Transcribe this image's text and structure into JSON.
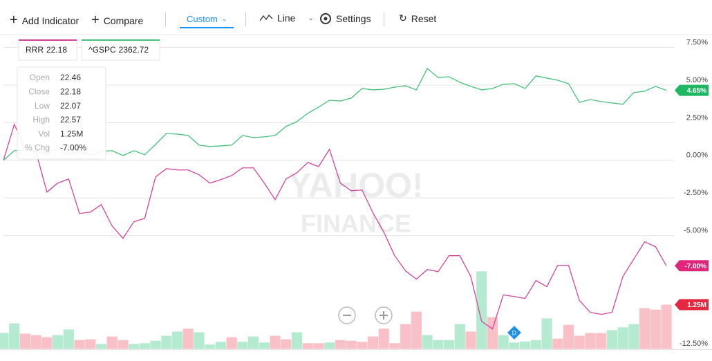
{
  "toolbar": {
    "add_indicator": "Add Indicator",
    "compare": "Compare",
    "range": "Custom",
    "chart_type": "Line",
    "settings": "Settings",
    "reset": "Reset"
  },
  "watermark": [
    "YAHOO!",
    "FINANCE"
  ],
  "tooltip": {
    "rows": [
      [
        "Open",
        "22.46"
      ],
      [
        "Close",
        "22.18"
      ],
      [
        "Low",
        "22.07"
      ],
      [
        "High",
        "22.57"
      ],
      [
        "Vol",
        "1.25M"
      ],
      [
        "% Chg",
        "-7.00%"
      ]
    ]
  },
  "chart_data": {
    "type": "line",
    "ylim": [
      -12.52,
      8.35
    ],
    "yticks": [
      {
        "value": 7.5,
        "label": "7.50%"
      },
      {
        "value": 5,
        "label": "5.00%"
      },
      {
        "value": 2.5,
        "label": "2.50%"
      },
      {
        "value": 0,
        "label": "0.00%"
      },
      {
        "value": -2.5,
        "label": "-2.50%"
      },
      {
        "value": -5,
        "label": "-5.00%"
      },
      {
        "value": -12.5,
        "label": "-12.50%"
      }
    ],
    "grid": true,
    "series": [
      {
        "name": "RRR",
        "legend_value": 22.18,
        "color": "#d2459d",
        "badge_color": "#e0267a",
        "values": [
          0,
          2.39,
          0.78,
          0.55,
          -2.11,
          -1.51,
          -1.24,
          -3.53,
          -3.44,
          -2.94,
          -4.36,
          -5.18,
          -4.08,
          -3.85,
          -1.1,
          -0.55,
          -0.64,
          -0.64,
          -0.96,
          -1.51,
          -1.28,
          -1.01,
          -0.5,
          -0.5,
          -1.51,
          -2.61,
          -1.24,
          -0.83,
          -0.14,
          -0.41,
          0.73,
          -1.51,
          -2.02,
          -1.97,
          -3.49,
          -4.77,
          -6.33,
          -7.34,
          -7.89,
          -7.25,
          -7.39,
          -6.33,
          -6.33,
          -7.71,
          -10.69,
          -11.19,
          -8.94,
          -9.04,
          -9.17,
          -7.98,
          -8.39,
          -6.97,
          -6.97,
          -9.31,
          -10.09,
          -10.23,
          -10.09,
          -7.71,
          -6.56,
          -5.41,
          -5.73,
          -7.0
        ],
        "value_labels": [
          null,
          null,
          null,
          null,
          null,
          null,
          null,
          null,
          null,
          null,
          null,
          null,
          null,
          null,
          null,
          null,
          null,
          null,
          null,
          null,
          null,
          null,
          null,
          null,
          null,
          null,
          null,
          null,
          null,
          null,
          null,
          null,
          null,
          null,
          null,
          null,
          null,
          null,
          null,
          null,
          null,
          null,
          null,
          null,
          null,
          null,
          null,
          null,
          null,
          null,
          null,
          null,
          null,
          null,
          null,
          null,
          null,
          null,
          null,
          null,
          null,
          "-7.00%"
        ]
      },
      {
        "name": "^GSPC",
        "legend_value": 2362.72,
        "color": "#45c17a",
        "badge_color": "#1fb862",
        "values": [
          0,
          0.64,
          0.69,
          0.64,
          0.46,
          0.78,
          0.41,
          0.64,
          0.32,
          0.6,
          0.64,
          0.32,
          0.64,
          0.37,
          1.06,
          1.79,
          1.74,
          1.65,
          1.01,
          0.92,
          0.96,
          1.01,
          1.65,
          1.51,
          1.56,
          1.65,
          2.25,
          2.57,
          3.12,
          3.53,
          3.99,
          3.94,
          4.13,
          4.77,
          4.68,
          4.72,
          4.86,
          4.95,
          4.68,
          6.1,
          5.5,
          5.55,
          5.18,
          4.91,
          4.68,
          4.77,
          5.05,
          5.09,
          4.77,
          5.6,
          5.46,
          5.32,
          5.09,
          3.85,
          4.04,
          3.9,
          3.81,
          3.72,
          4.5,
          4.59,
          4.91,
          4.65
        ],
        "value_labels": [
          null,
          null,
          null,
          null,
          null,
          null,
          null,
          null,
          null,
          null,
          null,
          null,
          null,
          null,
          null,
          null,
          null,
          null,
          null,
          null,
          null,
          null,
          null,
          null,
          null,
          null,
          null,
          null,
          null,
          null,
          null,
          null,
          null,
          null,
          null,
          null,
          null,
          null,
          null,
          null,
          null,
          null,
          null,
          null,
          null,
          null,
          null,
          null,
          null,
          null,
          null,
          null,
          null,
          null,
          null,
          null,
          null,
          null,
          null,
          null,
          null,
          "4.65%"
        ]
      }
    ],
    "volume": {
      "badge_color": "#e4283f",
      "values": [
        0.45,
        0.72,
        0.43,
        0.39,
        0.33,
        0.39,
        0.55,
        0.25,
        0.27,
        0.14,
        0.35,
        0.25,
        0.14,
        0.16,
        0.23,
        0.37,
        0.49,
        0.57,
        0.47,
        0.12,
        0.2,
        0.33,
        0.2,
        0.35,
        0.18,
        0.37,
        0.27,
        0.47,
        0.16,
        0.16,
        0.18,
        0.25,
        0.23,
        0.2,
        0.35,
        0.57,
        0.16,
        0.7,
        1.05,
        0.39,
        0.25,
        0.25,
        0.7,
        0.49,
        2.19,
        0.9,
        0.39,
        0.18,
        0.21,
        0.25,
        0.86,
        0.29,
        0.68,
        0.37,
        0.45,
        0.45,
        0.53,
        0.61,
        0.7,
        1.15,
        1.11,
        1.25
      ],
      "value_labels": [
        null,
        null,
        null,
        null,
        null,
        null,
        null,
        null,
        null,
        null,
        null,
        null,
        null,
        null,
        null,
        null,
        null,
        null,
        null,
        null,
        null,
        null,
        null,
        null,
        null,
        null,
        null,
        null,
        null,
        null,
        null,
        null,
        null,
        null,
        null,
        null,
        null,
        null,
        null,
        null,
        null,
        null,
        null,
        null,
        null,
        null,
        null,
        null,
        null,
        null,
        null,
        null,
        null,
        null,
        null,
        null,
        null,
        null,
        null,
        null,
        null,
        "1.25M"
      ],
      "colors": [
        "#b4ead0",
        "#b4ead0",
        "#f9c0c8",
        "#f9c0c8",
        "#f9c0c8",
        "#b4ead0",
        "#b4ead0",
        "#f9c0c8",
        "#f9c0c8",
        "#b4ead0",
        "#f9c0c8",
        "#f9c0c8",
        "#b4ead0",
        "#b4ead0",
        "#b4ead0",
        "#b4ead0",
        "#b4ead0",
        "#f9c0c8",
        "#b4ead0",
        "#b4ead0",
        "#b4ead0",
        "#f9c0c8",
        "#b4ead0",
        "#b4ead0",
        "#b4ead0",
        "#f9c0c8",
        "#f9c0c8",
        "#b4ead0",
        "#f9c0c8",
        "#f9c0c8",
        "#b4ead0",
        "#f9c0c8",
        "#f9c0c8",
        "#f9c0c8",
        "#f9c0c8",
        "#f9c0c8",
        "#f9c0c8",
        "#f9c0c8",
        "#f9c0c8",
        "#b4ead0",
        "#b4ead0",
        "#b4ead0",
        "#b4ead0",
        "#f9c0c8",
        "#b4ead0",
        "#f9c0c8",
        "#b4ead0",
        "#b4ead0",
        "#b4ead0",
        "#b4ead0",
        "#b4ead0",
        "#f9c0c8",
        "#f9c0c8",
        "#f9c0c8",
        "#f9c0c8",
        "#f9c0c8",
        "#b4ead0",
        "#b4ead0",
        "#b4ead0",
        "#f9c0c8",
        "#f9c0c8",
        "#f9c0c8"
      ]
    },
    "events": [
      {
        "label": "D",
        "at": 47
      }
    ]
  }
}
